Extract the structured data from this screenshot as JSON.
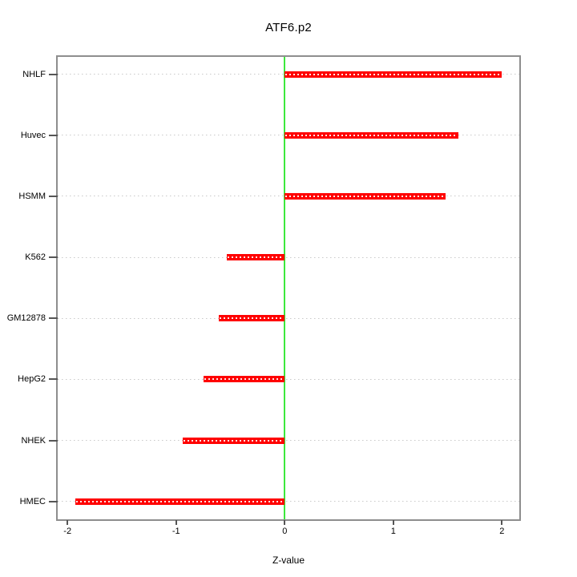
{
  "chart_data": {
    "type": "bar",
    "orientation": "horizontal",
    "title": "ATF6.p2",
    "xlabel": "Z-value",
    "ylabel": "",
    "categories": [
      "NHLF",
      "Huvec",
      "HSMM",
      "K562",
      "GM12878",
      "HepG2",
      "NHEK",
      "HMEC"
    ],
    "values": [
      2.0,
      1.6,
      1.48,
      -0.53,
      -0.61,
      -0.75,
      -0.94,
      -1.93
    ],
    "x_ticks": [
      -2,
      -1,
      0,
      1,
      2
    ],
    "xlim": [
      -2.09,
      2.16
    ],
    "zero_line_at": 0,
    "grid": "horizontal-dotted",
    "legend": null,
    "colors": {
      "bar": "#ff0000",
      "bar_center_dots": "#ffffff",
      "zero_line": "#3ce83c",
      "grid": "#c9c9c9",
      "frame": "#8e8e8e",
      "tick": "#555555",
      "text": "#000000",
      "background": "#ffffff"
    }
  }
}
